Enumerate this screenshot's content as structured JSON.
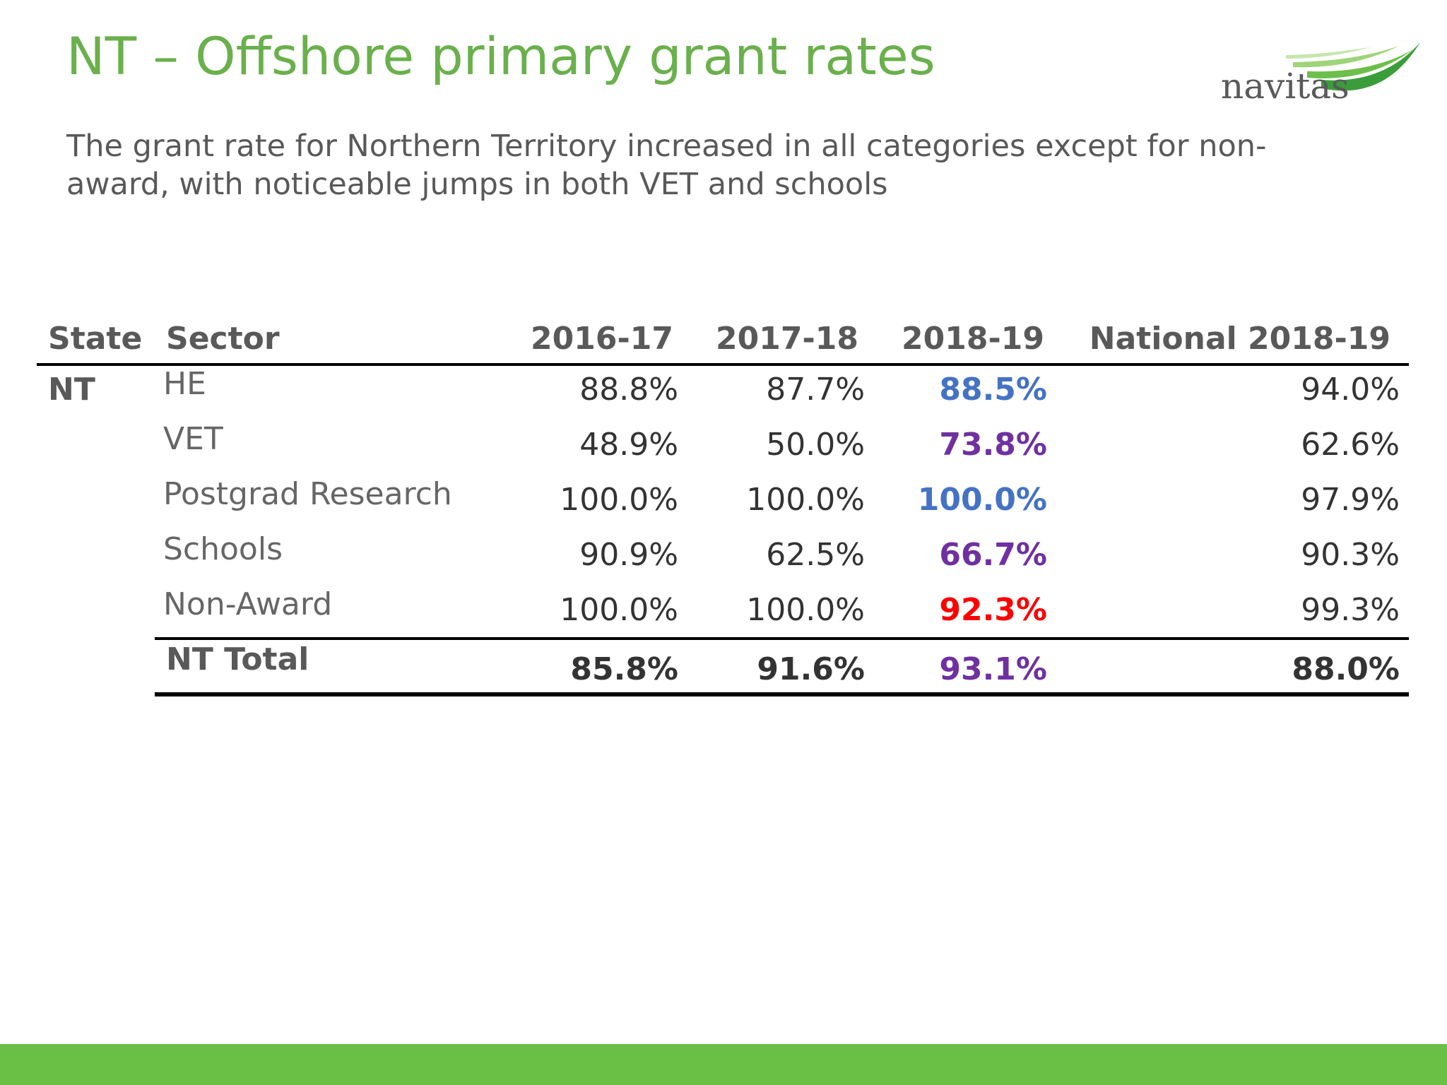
{
  "header": {
    "title": "NT – Offshore primary grant rates",
    "subtitle": "The grant rate for Northern Territory increased in all categories except for non-award, with noticeable jumps in both VET and schools",
    "logo": "navitas"
  },
  "table": {
    "headers": [
      "State",
      "Sector",
      "2016-17",
      "2017-18",
      "2018-19",
      "National 2018-19"
    ],
    "state": "NT",
    "rows": [
      [
        "HE",
        "88.8%",
        "87.7%",
        "88.5%",
        "94.0%"
      ],
      [
        "VET",
        "48.9%",
        "50.0%",
        "73.8%",
        "62.6%"
      ],
      [
        "Postgrad Research",
        "100.0%",
        "100.0%",
        "100.0%",
        "97.9%"
      ],
      [
        "Schools",
        "90.9%",
        "62.5%",
        "66.7%",
        "90.3%"
      ],
      [
        "Non-Award",
        "100.0%",
        "100.0%",
        "92.3%",
        "99.3%"
      ]
    ],
    "total": [
      "NT Total",
      "85.8%",
      "91.6%",
      "93.1%",
      "88.0%"
    ],
    "highlight_colors": [
      "#4472c4",
      "#7030a0",
      "#4472c4",
      "#7030a0",
      "#ff0000"
    ],
    "total_highlight_color": "#7030a0"
  }
}
